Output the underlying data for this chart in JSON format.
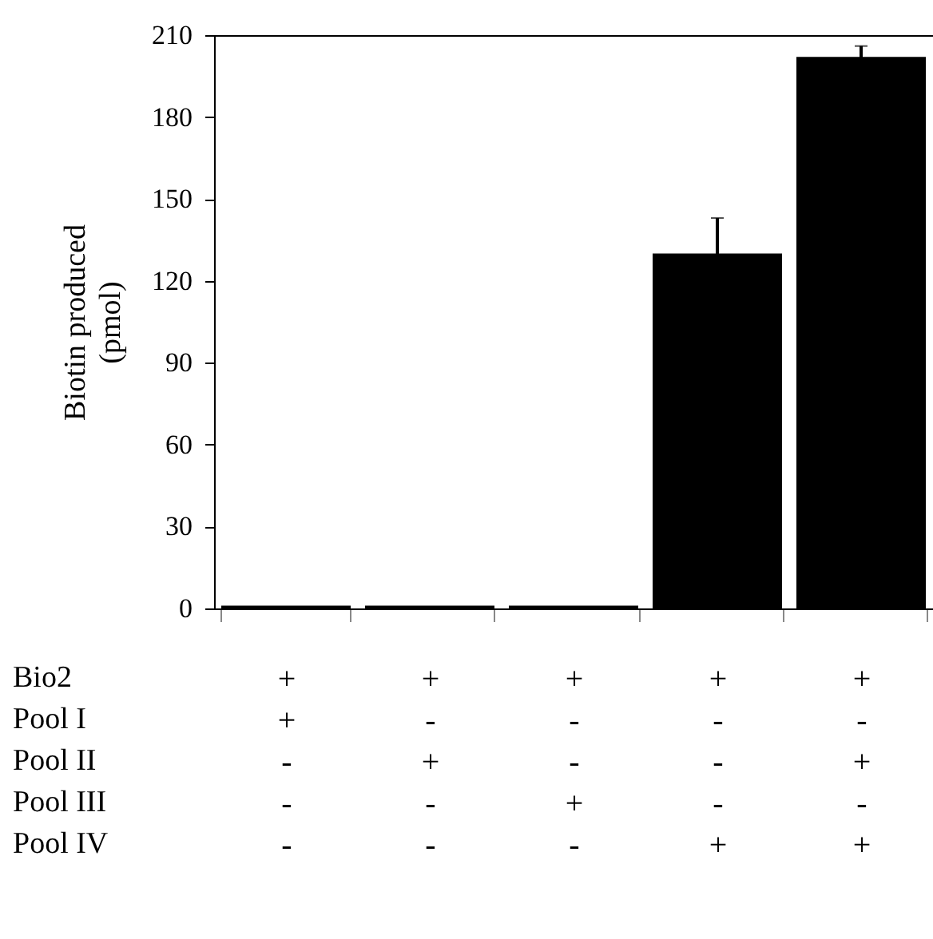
{
  "chart_data": {
    "type": "bar",
    "ylabel": "Biotin produced\n(pmol)",
    "categories": [
      "+\n+\n-\n-\n-",
      "+\n-\n+\n-\n-",
      "+\n-\n-\n+\n-",
      "+\n-\n-\n-\n+",
      "+\n-\n+\n-\n+"
    ],
    "values": [
      1,
      1,
      1,
      130,
      202
    ],
    "errors": [
      null,
      null,
      null,
      13,
      4
    ],
    "color": "#000000",
    "annotations": [
      "Bio2",
      "Pool I",
      "Pool II",
      "Pool III",
      "Pool IV"
    ],
    "ylim": [
      0,
      210
    ],
    "yticks": [
      0,
      30,
      60,
      90,
      120,
      150,
      180,
      210
    ],
    "grid": false
  }
}
